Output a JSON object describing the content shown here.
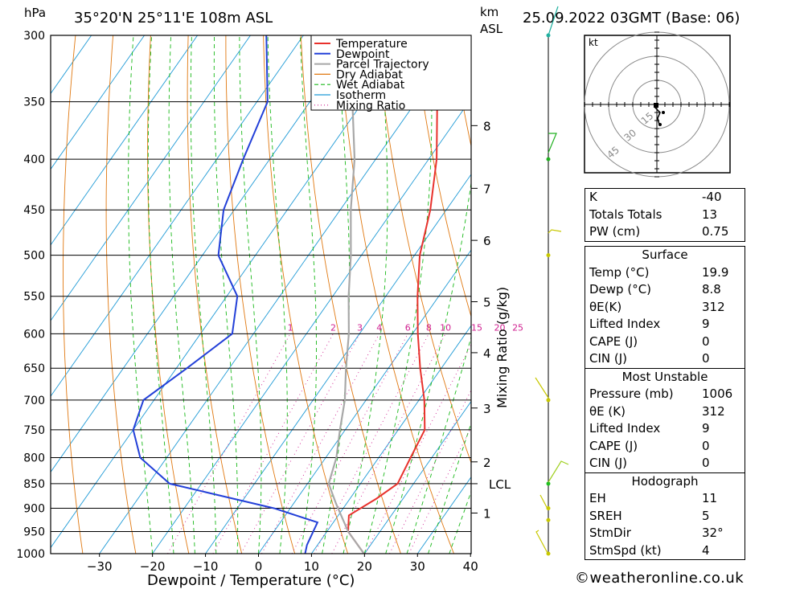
{
  "header": {
    "location": "35°20'N  25°11'E  108m  ASL",
    "datetime": "25.09.2022  03GMT  (Base: 06)",
    "pressure_unit": "hPa",
    "height_unit_line1": "km",
    "height_unit_line2": "ASL"
  },
  "chart_data": {
    "type": "line",
    "title": "35°20'N  25°11'E  108m  ASL",
    "xlabel": "Dewpoint / Temperature (°C)",
    "ylabel": "hPa",
    "y2label": "Mixing Ratio (g/kg)",
    "xlim": [
      -40,
      40
    ],
    "x_ticks": [
      -30,
      -20,
      -10,
      0,
      10,
      20,
      30,
      40
    ],
    "pressure_levels": [
      300,
      350,
      400,
      450,
      500,
      550,
      600,
      650,
      700,
      750,
      800,
      850,
      900,
      950,
      1000
    ],
    "km_ticks": [
      {
        "label": "8",
        "p": 370
      },
      {
        "label": "7",
        "p": 428
      },
      {
        "label": "6",
        "p": 483
      },
      {
        "label": "5",
        "p": 557
      },
      {
        "label": "4",
        "p": 627
      },
      {
        "label": "3",
        "p": 713
      },
      {
        "label": "2",
        "p": 808
      },
      {
        "label": "1",
        "p": 910
      }
    ],
    "lcl": {
      "label": "LCL",
      "p": 850
    },
    "mixing_ratio_labels": [
      "1",
      "2",
      "3",
      "4",
      "6",
      "8",
      "10",
      "15",
      "20",
      "25"
    ],
    "legend": [
      "Temperature",
      "Dewpoint",
      "Parcel Trajectory",
      "Dry Adiabat",
      "Wet Adiabat",
      "Isotherm",
      "Mixing Ratio"
    ],
    "legend_position": "top-right",
    "series": [
      {
        "name": "Temperature",
        "color": "#e8312c",
        "points": [
          [
            19.9,
            1000
          ],
          [
            14,
            950
          ],
          [
            12,
            915
          ],
          [
            15,
            880
          ],
          [
            17,
            850
          ],
          [
            16,
            800
          ],
          [
            15,
            750
          ],
          [
            11,
            700
          ],
          [
            6,
            650
          ],
          [
            1,
            600
          ],
          [
            -4,
            550
          ],
          [
            -9,
            500
          ],
          [
            -13,
            450
          ],
          [
            -18.5,
            400
          ],
          [
            -26,
            350
          ],
          [
            -34,
            300
          ]
        ]
      },
      {
        "name": "Dewpoint",
        "color": "#2340d8",
        "points": [
          [
            8.8,
            1000
          ],
          [
            8,
            980
          ],
          [
            7,
            930
          ],
          [
            -3,
            900
          ],
          [
            -26,
            850
          ],
          [
            -35,
            800
          ],
          [
            -40,
            750
          ],
          [
            -42,
            700
          ],
          [
            -38,
            650
          ],
          [
            -34,
            600
          ],
          [
            -38,
            550
          ],
          [
            -47,
            500
          ],
          [
            -52,
            450
          ],
          [
            -55,
            400
          ],
          [
            -58,
            350
          ],
          [
            -67,
            300
          ]
        ]
      },
      {
        "name": "Parcel Trajectory",
        "color": "#a8a8a8",
        "points": [
          [
            19.9,
            1000
          ],
          [
            14,
            950
          ],
          [
            8,
            890
          ],
          [
            4,
            850
          ],
          [
            2,
            800
          ],
          [
            -1,
            750
          ],
          [
            -4,
            700
          ],
          [
            -8,
            650
          ],
          [
            -12,
            600
          ],
          [
            -17,
            550
          ],
          [
            -22,
            500
          ],
          [
            -28,
            450
          ],
          [
            -34,
            400
          ],
          [
            -42,
            350
          ],
          [
            -50,
            300
          ]
        ]
      }
    ]
  },
  "hodograph": {
    "unit": "kt",
    "ring_labels": [
      "15",
      "30",
      "45"
    ]
  },
  "indices": {
    "k_label": "K",
    "k": "-40",
    "tt_label": "Totals Totals",
    "tt": "13",
    "pw_label": "PW (cm)",
    "pw": "0.75"
  },
  "surface": {
    "title": "Surface",
    "temp_label": "Temp (°C)",
    "temp": "19.9",
    "dewp_label": "Dewp (°C)",
    "dewp": "8.8",
    "theta_label": "θE(K)",
    "theta": "312",
    "li_label": "Lifted Index",
    "li": "9",
    "cape_label": "CAPE (J)",
    "cape": "0",
    "cin_label": "CIN (J)",
    "cin": "0"
  },
  "most_unstable": {
    "title": "Most Unstable",
    "pressure_label": "Pressure (mb)",
    "pressure": "1006",
    "theta_label": "θE (K)",
    "theta": "312",
    "li_label": "Lifted Index",
    "li": "9",
    "cape_label": "CAPE (J)",
    "cape": "0",
    "cin_label": "CIN (J)",
    "cin": "0"
  },
  "hodograph_stats": {
    "title": "Hodograph",
    "eh_label": "EH",
    "eh": "11",
    "sreh_label": "SREH",
    "sreh": "5",
    "stmdir_label": "StmDir",
    "stmdir": "32°",
    "stmspd_label": "StmSpd (kt)",
    "stmspd": "4"
  },
  "footer": {
    "credit": "©weatheronline.co.uk"
  },
  "colors": {
    "temperature": "#e8312c",
    "dewpoint": "#2340d8",
    "parcel": "#a8a8a8",
    "dry_adiabat": "#e07810",
    "wet_adiabat": "#18b818",
    "isotherm": "#1e9ad6",
    "mixing_ratio": "#d02090",
    "wind": "#c8c800"
  }
}
